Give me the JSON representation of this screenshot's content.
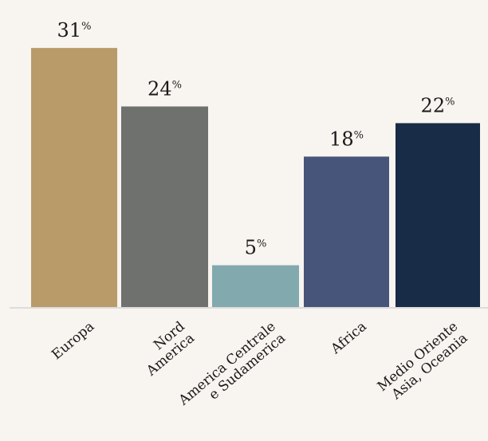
{
  "chart_data": {
    "type": "bar",
    "categories": [
      [
        "Europa"
      ],
      [
        "Nord",
        "America"
      ],
      [
        "America Centrale",
        "e Sudamerica"
      ],
      [
        "Africa"
      ],
      [
        "Medio Oriente",
        "Asia, Oceania"
      ]
    ],
    "values": [
      31,
      24,
      5,
      18,
      22
    ],
    "value_suffix": "%",
    "colors": [
      "#b89b68",
      "#6f716f",
      "#82a9ad",
      "#47557a",
      "#182b47"
    ],
    "ylim": [
      0,
      35
    ],
    "grid": false,
    "legend": "none",
    "axis_color": "#dcdcdc"
  }
}
